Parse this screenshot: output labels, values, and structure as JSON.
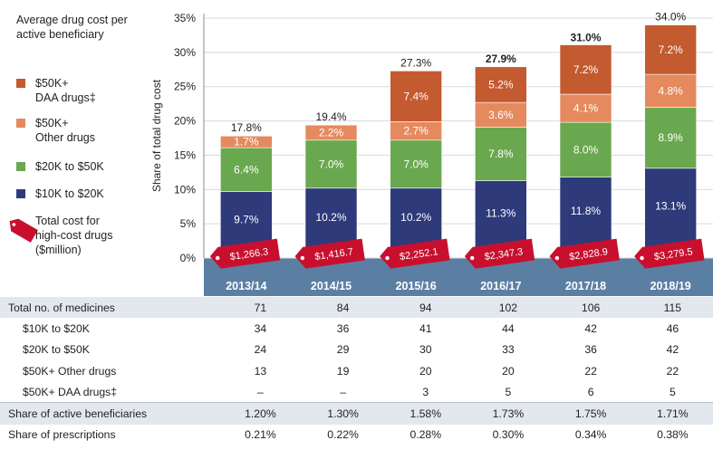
{
  "chart_data": {
    "type": "bar",
    "stacked": true,
    "title": "",
    "ylabel": "Share of total drug cost",
    "ylim": [
      0,
      35
    ],
    "yticks": [
      "0%",
      "5%",
      "10%",
      "15%",
      "20%",
      "25%",
      "30%",
      "35%"
    ],
    "categories": [
      "2013/14",
      "2014/15",
      "2015/16",
      "2016/17",
      "2017/18",
      "2018/19"
    ],
    "series": [
      {
        "name": "$10K to $20K",
        "color": "#2e3a7a",
        "values": [
          9.7,
          10.2,
          10.2,
          11.3,
          11.8,
          13.1
        ],
        "labels": [
          "9.7%",
          "10.2%",
          "10.2%",
          "11.3%",
          "11.8%",
          "13.1%"
        ]
      },
      {
        "name": "$20K to $50K",
        "color": "#6aa84f",
        "values": [
          6.4,
          7.0,
          7.0,
          7.8,
          8.0,
          8.9
        ],
        "labels": [
          "6.4%",
          "7.0%",
          "7.0%",
          "7.8%",
          "8.0%",
          "8.9%"
        ]
      },
      {
        "name": "$50K+ Other drugs",
        "color": "#e58a5e",
        "values": [
          1.7,
          2.2,
          2.7,
          3.6,
          4.1,
          4.8
        ],
        "labels": [
          "1.7%",
          "2.2%",
          "2.7%",
          "3.6%",
          "4.1%",
          "4.8%"
        ]
      },
      {
        "name": "$50K+ DAA drugs‡",
        "color": "#c45a2f",
        "values": [
          0,
          0,
          7.4,
          5.2,
          7.2,
          7.2
        ],
        "labels": [
          "",
          "",
          "7.4%",
          "5.2%",
          "7.2%",
          "7.2%"
        ]
      }
    ],
    "totals": [
      17.8,
      19.4,
      27.3,
      27.9,
      31.0,
      34.0
    ],
    "total_labels": [
      "17.8%",
      "19.4%",
      "27.3%",
      "27.9%",
      "31.0%",
      "34.0%"
    ],
    "total_cost_labels": [
      "$1,266.3",
      "$1,416.7",
      "$2,252.1",
      "$2,347.3",
      "$2,828.9",
      "$3,279.5"
    ]
  },
  "legend": {
    "title": "Average drug cost per active beneficiary",
    "items": [
      {
        "label_line1": "$50K+",
        "label_line2": "DAA drugs‡",
        "color": "#c45a2f"
      },
      {
        "label_line1": "$50K+",
        "label_line2": "Other drugs",
        "color": "#e58a5e"
      },
      {
        "label_line1": "$20K to $50K",
        "label_line2": "",
        "color": "#6aa84f"
      },
      {
        "label_line1": "$10K to $20K",
        "label_line2": "",
        "color": "#2e3a7a"
      }
    ],
    "cost_tag_label": "Total cost for high-cost drugs ($million)",
    "tag_color": "#c8102e"
  },
  "table": {
    "rows": [
      {
        "label": "Total no. of medicines",
        "values": [
          "71",
          "84",
          "94",
          "102",
          "106",
          "115"
        ],
        "indent": false,
        "shade": true
      },
      {
        "label": "$10K to $20K",
        "values": [
          "34",
          "36",
          "41",
          "44",
          "42",
          "46"
        ],
        "indent": true,
        "shade": false
      },
      {
        "label": "$20K to $50K",
        "values": [
          "24",
          "29",
          "30",
          "33",
          "36",
          "42"
        ],
        "indent": true,
        "shade": false
      },
      {
        "label": "$50K+ Other drugs",
        "values": [
          "13",
          "19",
          "20",
          "20",
          "22",
          "22"
        ],
        "indent": true,
        "shade": false
      },
      {
        "label": "$50K+ DAA drugs‡",
        "values": [
          "–",
          "–",
          "3",
          "5",
          "6",
          "5"
        ],
        "indent": true,
        "shade": false
      },
      {
        "label": "Share of active beneficiaries",
        "values": [
          "1.20%",
          "1.30%",
          "1.58%",
          "1.73%",
          "1.75%",
          "1.71%"
        ],
        "indent": false,
        "shade": true
      },
      {
        "label": "Share of prescriptions",
        "values": [
          "0.21%",
          "0.22%",
          "0.28%",
          "0.30%",
          "0.34%",
          "0.38%"
        ],
        "indent": false,
        "shade": false
      }
    ]
  },
  "colors": {
    "axis_band": "#5b7fa3",
    "table_shade": "#e3e8ee"
  }
}
